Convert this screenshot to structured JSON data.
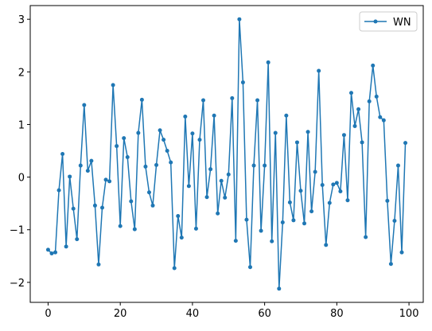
{
  "chart_data": {
    "type": "line",
    "x": [
      0,
      1,
      2,
      3,
      4,
      5,
      6,
      7,
      8,
      9,
      10,
      11,
      12,
      13,
      14,
      15,
      16,
      17,
      18,
      19,
      20,
      21,
      22,
      23,
      24,
      25,
      26,
      27,
      28,
      29,
      30,
      31,
      32,
      33,
      34,
      35,
      36,
      37,
      38,
      39,
      40,
      41,
      42,
      43,
      44,
      45,
      46,
      47,
      48,
      49,
      50,
      51,
      52,
      53,
      54,
      55,
      56,
      57,
      58,
      59,
      60,
      61,
      62,
      63,
      64,
      65,
      66,
      67,
      68,
      69,
      70,
      71,
      72,
      73,
      74,
      75,
      76,
      77,
      78,
      79,
      80,
      81,
      82,
      83,
      84,
      85,
      86,
      87,
      88,
      89,
      90,
      91,
      92,
      93,
      94,
      95,
      96,
      97,
      98,
      99
    ],
    "series": [
      {
        "name": "WN",
        "color": "#1f77b4",
        "values": [
          -1.38,
          -1.45,
          -1.43,
          -0.25,
          0.44,
          -1.32,
          0.01,
          -0.6,
          -1.18,
          0.22,
          1.37,
          0.12,
          0.31,
          -0.54,
          -1.66,
          -0.58,
          -0.05,
          -0.08,
          1.75,
          0.59,
          -0.93,
          0.74,
          0.38,
          -0.46,
          -0.99,
          0.84,
          1.47,
          0.2,
          -0.29,
          -0.54,
          0.23,
          0.89,
          0.71,
          0.5,
          0.28,
          -1.73,
          -0.74,
          -1.15,
          1.15,
          -0.17,
          0.83,
          -0.98,
          0.71,
          1.46,
          -0.38,
          0.15,
          1.17,
          -0.69,
          -0.07,
          -0.39,
          0.05,
          1.5,
          -1.21,
          3.0,
          1.8,
          -0.81,
          -1.71,
          0.22,
          1.46,
          -1.02,
          0.22,
          2.18,
          -1.22,
          0.84,
          -2.12,
          -0.86,
          1.17,
          -0.48,
          -0.82,
          0.66,
          -0.26,
          -0.88,
          0.86,
          -0.65,
          0.1,
          2.02,
          -0.15,
          -1.29,
          -0.49,
          -0.14,
          -0.11,
          -0.27,
          0.8,
          -0.44,
          1.6,
          0.97,
          1.29,
          0.66,
          -1.14,
          1.44,
          2.12,
          1.53,
          1.14,
          1.08,
          -0.45,
          -1.65,
          -0.83,
          0.22,
          -1.43,
          0.65
        ]
      }
    ],
    "xlim": [
      -4.95,
      103.95
    ],
    "ylim": [
      -2.38,
      3.26
    ],
    "xticks": [
      0,
      20,
      40,
      60,
      80,
      100
    ],
    "yticks": [
      {
        "value": -2,
        "label": "−2"
      },
      {
        "value": -1,
        "label": "−1"
      },
      0,
      1,
      2,
      3
    ],
    "legend": "upper right"
  }
}
